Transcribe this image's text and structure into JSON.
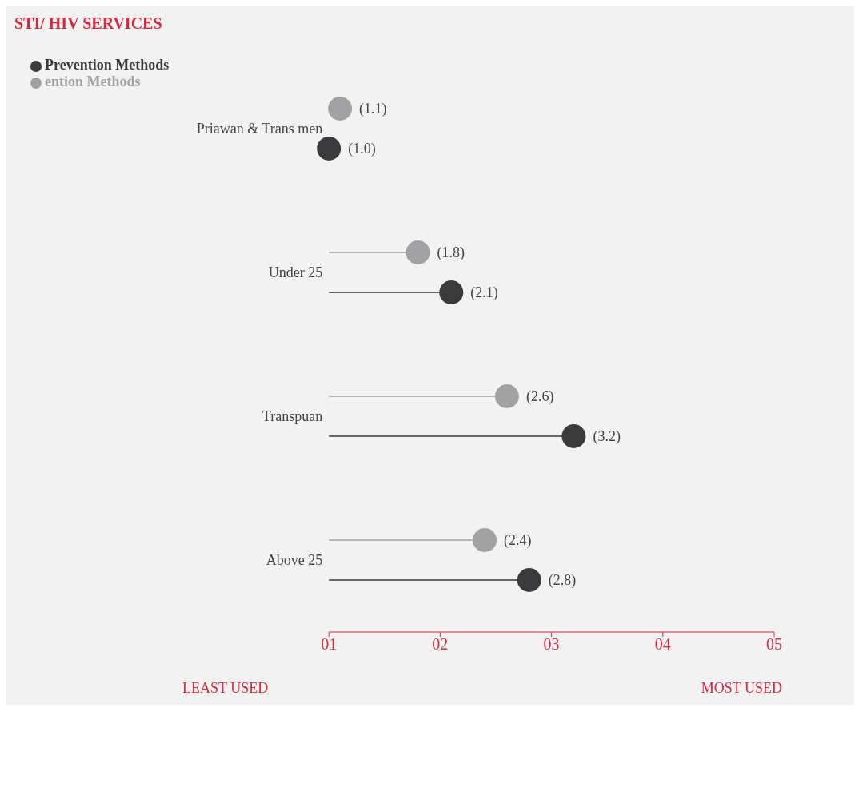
{
  "chart_data": {
    "type": "lollipop",
    "orientation": "horizontal",
    "title": "STI/ HIV SERVICES",
    "categories": [
      "Priawan & Trans men",
      "Under 25",
      "Transpuan",
      "Above 25"
    ],
    "series": [
      {
        "name": "ention Methods",
        "color": "#a2a2a5",
        "values": [
          1.1,
          1.8,
          2.6,
          2.4
        ],
        "value_labels": [
          "(1.1)",
          "(1.8)",
          "(2.6)",
          "(2.4)"
        ]
      },
      {
        "name": "Prevention Methods",
        "color": "#3a3a3c",
        "values": [
          1.0,
          2.1,
          3.2,
          2.8
        ],
        "value_labels": [
          "(1.0)",
          "(2.1)",
          "(3.2)",
          "(2.8)"
        ]
      }
    ],
    "xlim": [
      1,
      5
    ],
    "xticks": [
      {
        "value": 1,
        "label": "01"
      },
      {
        "value": 2,
        "label": "02"
      },
      {
        "value": 3,
        "label": "03"
      },
      {
        "value": 4,
        "label": "04"
      },
      {
        "value": 5,
        "label": "05"
      }
    ],
    "annotations": [
      "LEAST USED",
      "MOST USED"
    ],
    "legend": "top left",
    "marker": "circle"
  }
}
